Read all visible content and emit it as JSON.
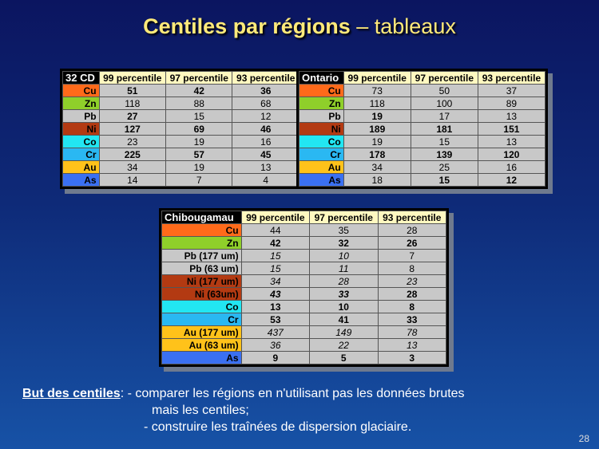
{
  "title": {
    "bold": "Centiles par régions",
    "rest": " – tableaux"
  },
  "headers": [
    "99 percentile",
    "97 percentile",
    "93 percentile"
  ],
  "element_colors": {
    "Cu": "#ff6a1a",
    "Zn": "#8fcf2a",
    "Pb": "#c8c8c8",
    "Ni": "#b33a12",
    "Co": "#22e6f2",
    "Cr": "#2ab8f2",
    "Au": "#ffc21a",
    "As": "#3a70f2"
  },
  "tables": {
    "cd32": {
      "region": "32 CD",
      "rows": [
        {
          "el": "Cu",
          "v": [
            "51",
            "42",
            "36"
          ]
        },
        {
          "el": "Zn",
          "v": [
            "118",
            "88",
            "68"
          ]
        },
        {
          "el": "Pb",
          "v": [
            "27",
            "15",
            "12"
          ]
        },
        {
          "el": "Ni",
          "v": [
            "127",
            "69",
            "46"
          ]
        },
        {
          "el": "Co",
          "v": [
            "23",
            "19",
            "16"
          ]
        },
        {
          "el": "Cr",
          "v": [
            "225",
            "57",
            "45"
          ]
        },
        {
          "el": "Au",
          "v": [
            "34",
            "19",
            "13"
          ]
        },
        {
          "el": "As",
          "v": [
            "14",
            "7",
            "4"
          ]
        }
      ]
    },
    "ontario": {
      "region": "Ontario",
      "rows": [
        {
          "el": "Cu",
          "v": [
            "73",
            "50",
            "37"
          ]
        },
        {
          "el": "Zn",
          "v": [
            "118",
            "100",
            "89"
          ]
        },
        {
          "el": "Pb",
          "v": [
            "19",
            "17",
            "13"
          ]
        },
        {
          "el": "Ni",
          "v": [
            "189",
            "181",
            "151"
          ]
        },
        {
          "el": "Co",
          "v": [
            "19",
            "15",
            "13"
          ]
        },
        {
          "el": "Cr",
          "v": [
            "178",
            "139",
            "120"
          ]
        },
        {
          "el": "Au",
          "v": [
            "34",
            "25",
            "16"
          ]
        },
        {
          "el": "As",
          "v": [
            "18",
            "15",
            "12"
          ]
        }
      ]
    },
    "chibougamau": {
      "region": "Chibougamau",
      "rows": [
        {
          "el": "Cu",
          "v": [
            "44",
            "35",
            "28"
          ]
        },
        {
          "el": "Zn",
          "v": [
            "42",
            "32",
            "26"
          ]
        },
        {
          "el": "Pb (177 um)",
          "v": [
            "15",
            "10",
            "7"
          ]
        },
        {
          "el": "Pb (63 um)",
          "v": [
            "15",
            "11",
            "8"
          ]
        },
        {
          "el": "Ni (177 um)",
          "v": [
            "34",
            "28",
            "23"
          ]
        },
        {
          "el": "Ni (63um)",
          "v": [
            "43",
            "33",
            "28"
          ]
        },
        {
          "el": "Co",
          "v": [
            "13",
            "10",
            "8"
          ]
        },
        {
          "el": "Cr",
          "v": [
            "53",
            "41",
            "33"
          ]
        },
        {
          "el": "Au (177 um)",
          "v": [
            "437",
            "149",
            "78"
          ]
        },
        {
          "el": "Au (63 um)",
          "v": [
            "36",
            "22",
            "13"
          ]
        },
        {
          "el": "As",
          "v": [
            "9",
            "5",
            "3"
          ]
        }
      ]
    }
  },
  "bottom_text": {
    "label": "But des centiles",
    "colon": ":",
    "line1": " - comparer les régions en n'utilisant pas les données brutes",
    "line2": "mais les centiles;",
    "line3": "- construire les traînées de dispersion glaciaire."
  },
  "page_number": "28"
}
